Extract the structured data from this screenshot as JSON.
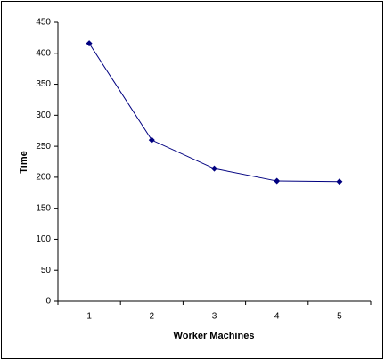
{
  "chart_data": {
    "type": "line",
    "categories": [
      "1",
      "2",
      "3",
      "4",
      "5"
    ],
    "series": [
      {
        "name": "Time",
        "color": "#000080",
        "values": [
          416,
          260,
          214,
          194,
          193
        ]
      }
    ],
    "ylim": [
      0,
      450
    ],
    "yticks": [
      0,
      50,
      100,
      150,
      200,
      250,
      300,
      350,
      400,
      450
    ],
    "ylabel": "Time",
    "xlabel": "Worker Machines",
    "grid": false
  }
}
